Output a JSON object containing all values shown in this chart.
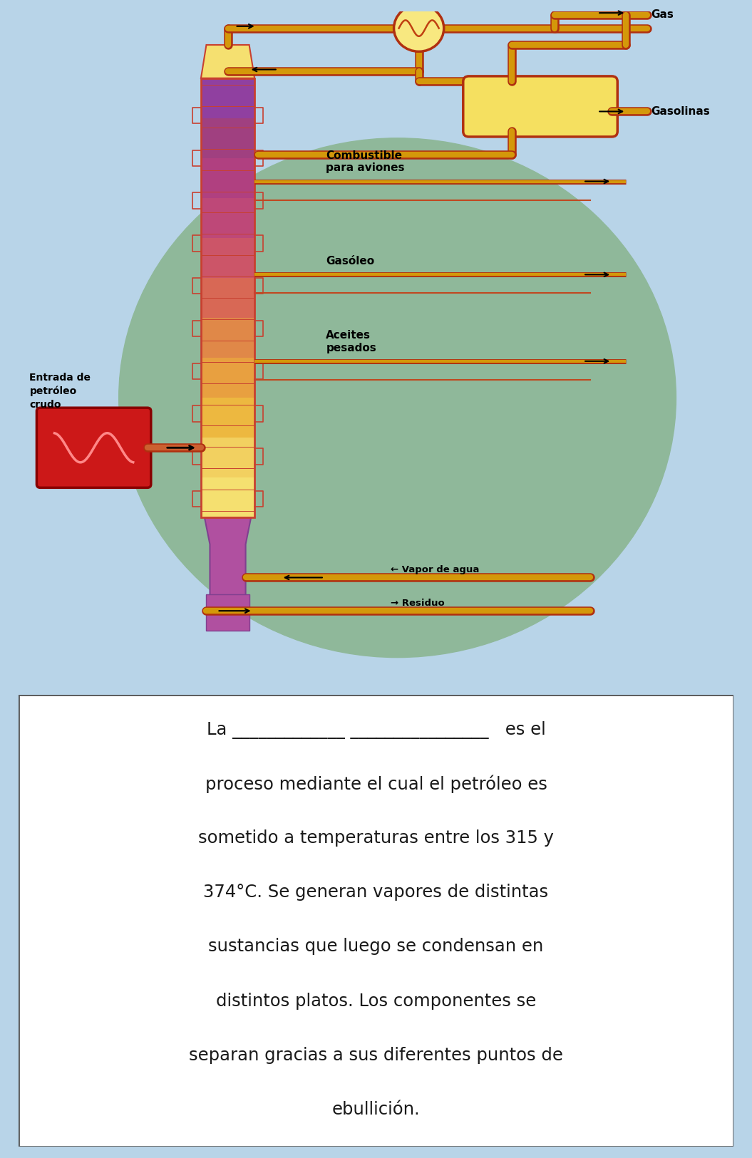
{
  "bg_color": "#b8d4e8",
  "img_area_bg": "#ede8df",
  "text_box_bg": "#ffffff",
  "diagram_circle_color": "#8fb89a",
  "pipe_color": "#d4980a",
  "pipe_border": "#b03010",
  "tower_colors": [
    "#f5e070",
    "#f2d060",
    "#edb840",
    "#e8a040",
    "#e08848",
    "#d86855",
    "#cc5568",
    "#be4878",
    "#b04080",
    "#a04080",
    "#9040a0"
  ],
  "brick_line_color": "#c84030",
  "heater_color": "#cc1818",
  "heater_border": "#880000",
  "heater_squiggle": "#ff8888",
  "bottom_bulge_color": "#b050a0",
  "residuo_pipe_color": "#a04040",
  "separator_line_color": "#c87820",
  "labels": {
    "gas": "Gas",
    "gasolinas": "Gasolinas",
    "combustible": "Combustible\npara aviones",
    "gasoleo": "Gasóleo",
    "aceites": "Aceites\npesados",
    "vapor": "← Vapor de agua",
    "residuo": "→ Residuo",
    "entrada": "Entrada de\npetróleo\ncrudo"
  },
  "text_lines": [
    "La _____________ ________________   es el",
    "proceso mediante el cual el petróleo es",
    "sometido a temperaturas entre los 315 y",
    "374°C. Se generan vapores de distintas",
    "sustancias que luego se condensan en",
    "distintos platos. Los componentes se",
    "separan gracias a sus diferentes puntos de",
    "ebullición."
  ],
  "text_color": "#1a1a1a"
}
